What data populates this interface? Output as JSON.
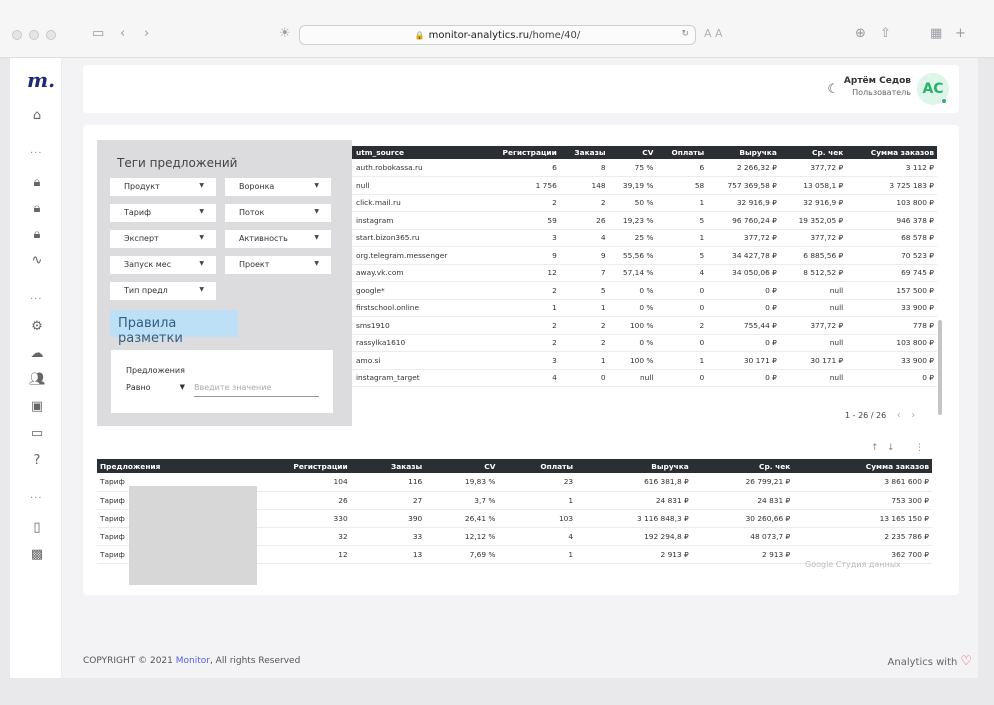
{
  "browser": {
    "url_domain": "monitor-analytics.ru",
    "url_path": "/home/40/",
    "reader_icons": "A  A"
  },
  "sidebar": {
    "logo": "m.",
    "icons": [
      "home-icon",
      "lock-icon",
      "lock-icon",
      "lock-icon",
      "activity-icon",
      "settings-icon",
      "cloud-icon",
      "users-icon",
      "board-icon",
      "monitor-icon",
      "help-icon",
      "phone-icon",
      "qr-icon"
    ]
  },
  "header": {
    "user_name": "Артём Седов",
    "user_role": "Пользователь",
    "avatar_initials": "AC"
  },
  "filters": {
    "title": "Теги предложений",
    "dropdowns_left": [
      "Продукт",
      "Тариф",
      "Эксперт",
      "Запуск мес",
      "Тип предл"
    ],
    "dropdowns_right": [
      "Воронка",
      "Поток",
      "Активность",
      "Проект"
    ],
    "rules_label": "Правила разметки",
    "offer_label": "Предложения",
    "offer_operator": "Равно",
    "offer_placeholder": "Введите значение"
  },
  "table1": {
    "headers": [
      "utm_source",
      "Регистрации",
      "Заказы",
      "CV",
      "Оплаты",
      "Выручка",
      "Ср. чек",
      "Сумма заказов"
    ],
    "rows": [
      [
        "auth.robokassa.ru",
        "6",
        "8",
        "75 %",
        "6",
        "2 266,32 ₽",
        "377,72 ₽",
        "3 112 ₽"
      ],
      [
        "null",
        "1 756",
        "148",
        "39,19 %",
        "58",
        "757 369,58 ₽",
        "13 058,1 ₽",
        "3 725 183 ₽"
      ],
      [
        "click.mail.ru",
        "2",
        "2",
        "50 %",
        "1",
        "32 916,9 ₽",
        "32 916,9 ₽",
        "103 800 ₽"
      ],
      [
        "instagram",
        "59",
        "26",
        "19,23 %",
        "5",
        "96 760,24 ₽",
        "19 352,05 ₽",
        "946 378 ₽"
      ],
      [
        "start.bizon365.ru",
        "3",
        "4",
        "25 %",
        "1",
        "377,72 ₽",
        "377,72 ₽",
        "68 578 ₽"
      ],
      [
        "org.telegram.messenger",
        "9",
        "9",
        "55,56 %",
        "5",
        "34 427,78 ₽",
        "6 885,56 ₽",
        "70 523 ₽"
      ],
      [
        "away.vk.com",
        "12",
        "7",
        "57,14 %",
        "4",
        "34 050,06 ₽",
        "8 512,52 ₽",
        "69 745 ₽"
      ],
      [
        "google*",
        "2",
        "5",
        "0 %",
        "0",
        "0 ₽",
        "null",
        "157 500 ₽"
      ],
      [
        "firstschool.online",
        "1",
        "1",
        "0 %",
        "0",
        "0 ₽",
        "null",
        "33 900 ₽"
      ],
      [
        "sms1910",
        "2",
        "2",
        "100 %",
        "2",
        "755,44 ₽",
        "377,72 ₽",
        "778 ₽"
      ],
      [
        "rassylka1610",
        "2",
        "2",
        "0 %",
        "0",
        "0 ₽",
        "null",
        "103 800 ₽"
      ],
      [
        "amo.si",
        "3",
        "1",
        "100 %",
        "1",
        "30 171 ₽",
        "30 171 ₽",
        "33 900 ₽"
      ],
      [
        "instagram_target",
        "4",
        "0",
        "null",
        "0",
        "0 ₽",
        "null",
        "0 ₽"
      ]
    ],
    "pager": "1 - 26 / 26"
  },
  "table2": {
    "headers": [
      "Предложения",
      "Регистрации",
      "Заказы",
      "CV",
      "Оплаты",
      "Выручка",
      "Ср. чек",
      "Сумма заказов"
    ],
    "rows": [
      [
        "Тариф",
        "104",
        "116",
        "19,83 %",
        "23",
        "616 381,8 ₽",
        "26 799,21 ₽",
        "3 861 600 ₽"
      ],
      [
        "Тариф",
        "26",
        "27",
        "3,7 %",
        "1",
        "24 831 ₽",
        "24 831 ₽",
        "753 300 ₽"
      ],
      [
        "Тариф",
        "330",
        "390",
        "26,41 %",
        "103",
        "3 116 848,3 ₽",
        "30 260,66 ₽",
        "13 165 150 ₽"
      ],
      [
        "Тариф",
        "32",
        "33",
        "12,12 %",
        "4",
        "192 294,8 ₽",
        "48 073,7 ₽",
        "2 235 786 ₽"
      ],
      [
        "Тариф",
        "12",
        "13",
        "7,69 %",
        "1",
        "2 913 ₽",
        "2 913 ₽",
        "362 700 ₽"
      ]
    ],
    "watermark": "Google Студия данных"
  },
  "footer": {
    "copyright_prefix": "COPYRIGHT © 2021 ",
    "brand": "Monitor",
    "copyright_suffix": ", All rights Reserved",
    "right_text": "Analytics with"
  }
}
